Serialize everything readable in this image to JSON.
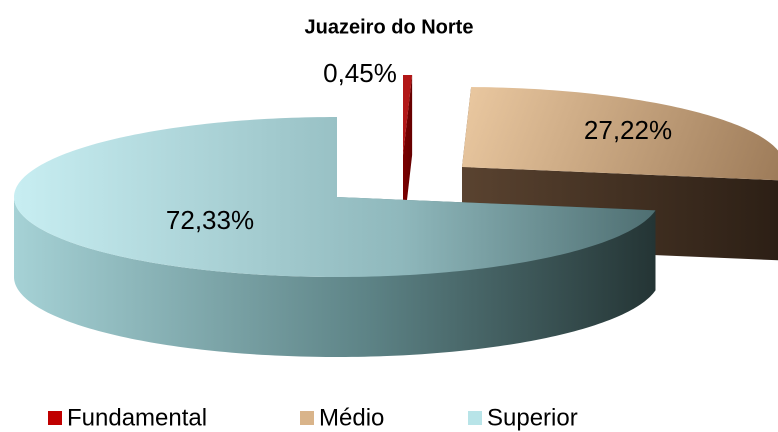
{
  "chart_data": {
    "type": "pie3d",
    "title": "Juazeiro do Norte",
    "categories": [
      "Fundamental",
      "Médio",
      "Superior"
    ],
    "values": [
      0.45,
      27.22,
      72.33
    ],
    "value_labels": [
      "0,45%",
      "27,22%",
      "72,33%"
    ],
    "colors": [
      "#c00000",
      "#d9b48a",
      "#b8e4e8"
    ],
    "legend": "bottom"
  }
}
